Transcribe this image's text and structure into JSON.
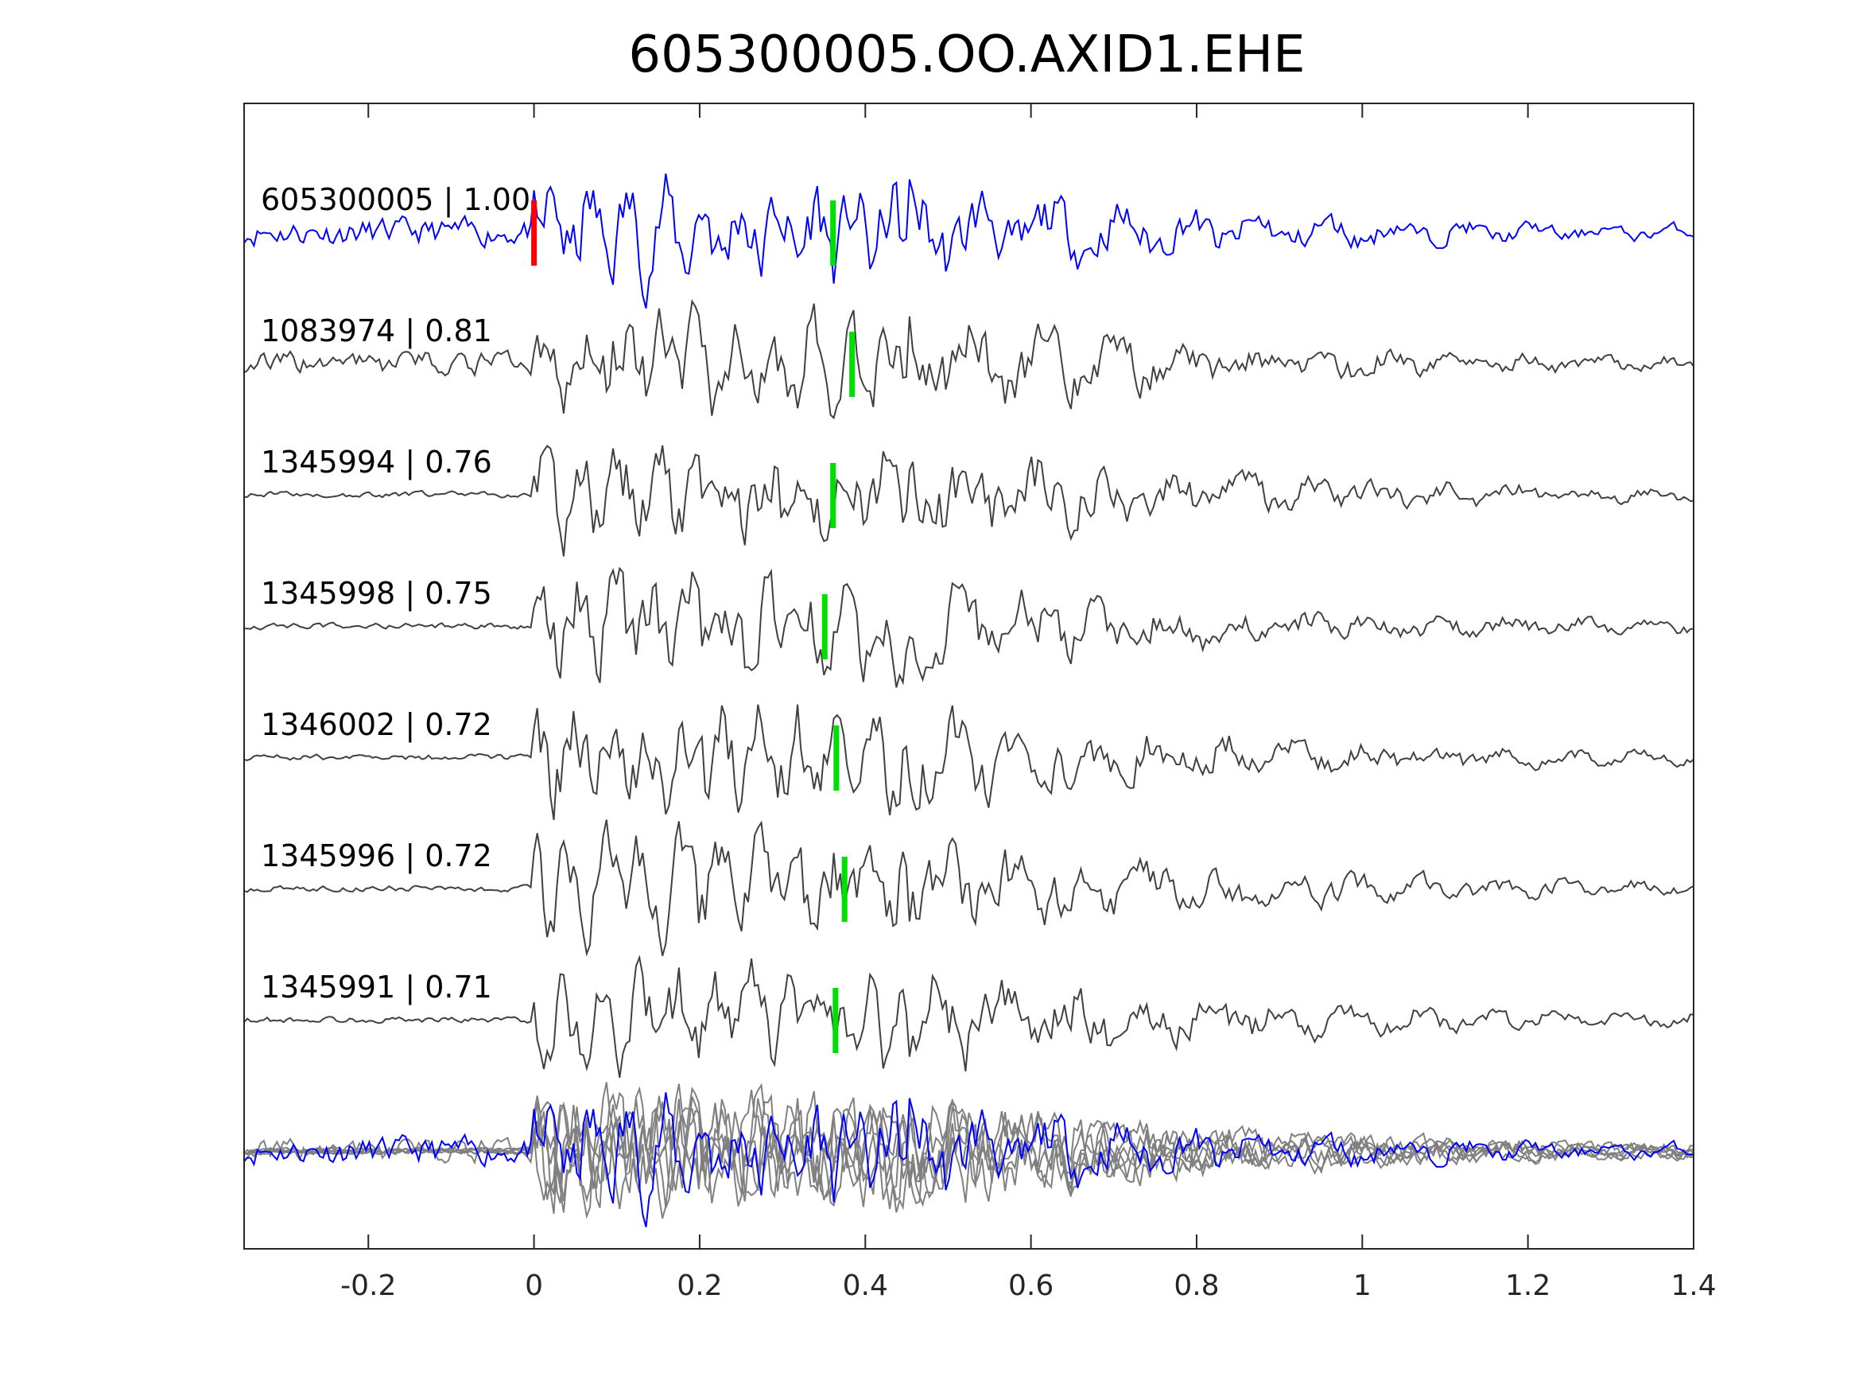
{
  "chart_data": {
    "type": "line",
    "title": "605300005.OO.AXID1.EHE",
    "xlabel": "",
    "ylabel": "",
    "xlim": [
      -0.35,
      1.4
    ],
    "xticks": [
      -0.2,
      0,
      0.2,
      0.4,
      0.6,
      0.8,
      1,
      1.2,
      1.4
    ],
    "xtick_labels": [
      "-0.2",
      "0",
      "0.2",
      "0.4",
      "0.6",
      "0.8",
      "1",
      "1.2",
      "1.4"
    ],
    "grid": false,
    "reference_pick": {
      "time": 0,
      "color": "#ff0000"
    },
    "series": [
      {
        "name": "605300005",
        "cc": "1.00",
        "label": "605300005 | 1.00",
        "color": "#0000ff",
        "pick": 0.361
      },
      {
        "name": "1083974",
        "cc": "0.81",
        "label": "1083974 | 0.81",
        "color": "#404040",
        "pick": 0.384
      },
      {
        "name": "1345994",
        "cc": "0.76",
        "label": "1345994 | 0.76",
        "color": "#404040",
        "pick": 0.361
      },
      {
        "name": "1345998",
        "cc": "0.75",
        "label": "1345998 | 0.75",
        "color": "#404040",
        "pick": 0.351
      },
      {
        "name": "1346002",
        "cc": "0.72",
        "label": "1346002 | 0.72",
        "color": "#404040",
        "pick": 0.365
      },
      {
        "name": "1345996",
        "cc": "0.72",
        "label": "1345996 | 0.72",
        "color": "#404040",
        "pick": 0.375
      },
      {
        "name": "1345991",
        "cc": "0.71",
        "label": "1345991 | 0.71",
        "color": "#404040",
        "pick": 0.364
      }
    ],
    "overlay": {
      "description_color_template": "#0000ff",
      "color_others": "#808080"
    },
    "pick_color": "#00e000"
  }
}
